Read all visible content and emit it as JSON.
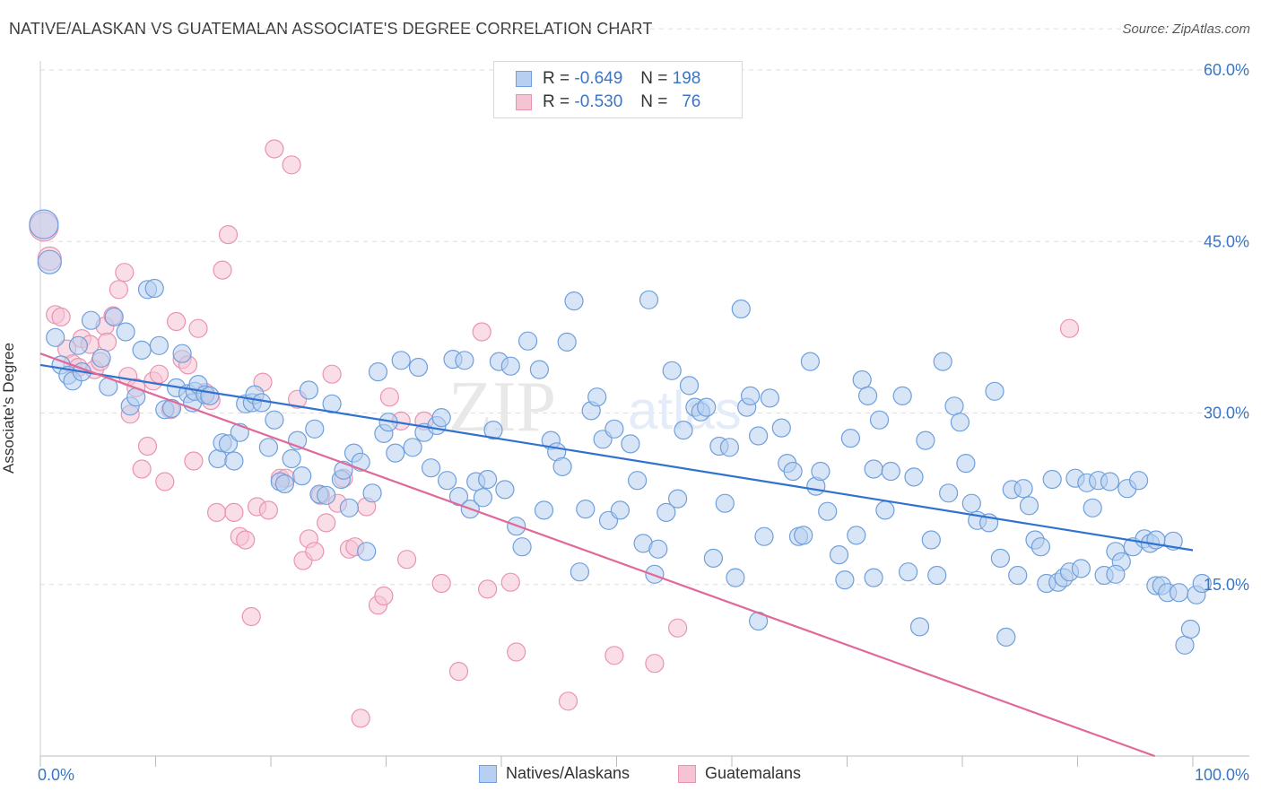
{
  "header": {
    "title": "NATIVE/ALASKAN VS GUATEMALAN ASSOCIATE'S DEGREE CORRELATION CHART",
    "source": "Source: ZipAtlas.com"
  },
  "legend_top": {
    "rows": [
      {
        "r_label": "R =",
        "r_value": "-0.649",
        "n_label": "N =",
        "n_value": "198",
        "color": "#6fa0e0"
      },
      {
        "r_label": "R =",
        "r_value": "-0.530",
        "n_label": "N =",
        "n_value": "76",
        "color": "#ec8fae"
      }
    ]
  },
  "legend_bottom": {
    "items": [
      {
        "label": "Natives/Alaskans",
        "color": "#6fa0e0"
      },
      {
        "label": "Guatemalans",
        "color": "#ec8fae"
      }
    ]
  },
  "colors": {
    "blue_fill": "#b7cff0",
    "blue_stroke": "#6f9fdc",
    "blue_line": "#2f72cf",
    "pink_fill": "#f6c3d3",
    "pink_stroke": "#ea93b0",
    "pink_line": "#e0699a",
    "grid": "#dddddd",
    "tick_text": "#3a76c4"
  },
  "chart_data": {
    "type": "scatter",
    "title": "NATIVE/ALASKAN VS GUATEMALAN ASSOCIATE'S DEGREE CORRELATION CHART",
    "ylabel": "Associate's Degree",
    "xlabel": "",
    "xlim": [
      0,
      100
    ],
    "ylim": [
      0,
      65
    ],
    "x_tick_labels": [
      "0.0%",
      "100.0%"
    ],
    "y_ticks": [
      15,
      30,
      45,
      60
    ],
    "y_tick_labels": [
      "15.0%",
      "30.0%",
      "45.0%",
      "60.0%"
    ],
    "grid": true,
    "watermark": "ZIPatlas",
    "series": [
      {
        "name": "Natives/Alaskans",
        "R": -0.649,
        "N": 198,
        "trend": {
          "x": [
            0,
            100
          ],
          "y": [
            34.2,
            18.0
          ]
        },
        "points": [
          [
            0.3,
            46.5
          ],
          [
            0.8,
            43.2
          ],
          [
            1.3,
            36.6
          ],
          [
            1.8,
            34.2
          ],
          [
            2.4,
            33.3
          ],
          [
            2.8,
            32.8
          ],
          [
            3.3,
            35.9
          ],
          [
            3.6,
            33.6
          ],
          [
            4.4,
            38.1
          ],
          [
            5.3,
            34.8
          ],
          [
            5.9,
            32.3
          ],
          [
            6.4,
            38.4
          ],
          [
            7.4,
            37.1
          ],
          [
            7.8,
            30.6
          ],
          [
            8.3,
            31.4
          ],
          [
            8.8,
            35.5
          ],
          [
            9.3,
            40.8
          ],
          [
            9.9,
            40.9
          ],
          [
            10.3,
            35.9
          ],
          [
            10.8,
            30.3
          ],
          [
            11.4,
            30.4
          ],
          [
            11.8,
            32.2
          ],
          [
            12.3,
            35.2
          ],
          [
            12.8,
            31.7
          ],
          [
            13.2,
            30.9
          ],
          [
            13.4,
            31.9
          ],
          [
            13.7,
            32.5
          ],
          [
            14.3,
            31.6
          ],
          [
            14.7,
            31.5
          ],
          [
            15.4,
            26.0
          ],
          [
            15.8,
            27.4
          ],
          [
            16.3,
            27.3
          ],
          [
            16.8,
            25.8
          ],
          [
            17.3,
            28.3
          ],
          [
            17.8,
            30.8
          ],
          [
            18.4,
            30.9
          ],
          [
            18.6,
            31.6
          ],
          [
            19.2,
            30.9
          ],
          [
            19.8,
            27.0
          ],
          [
            20.3,
            29.4
          ],
          [
            20.8,
            24.0
          ],
          [
            21.2,
            23.8
          ],
          [
            21.8,
            26.0
          ],
          [
            22.3,
            27.6
          ],
          [
            22.7,
            24.5
          ],
          [
            23.3,
            32.0
          ],
          [
            23.8,
            28.6
          ],
          [
            24.2,
            22.9
          ],
          [
            24.8,
            22.8
          ],
          [
            25.3,
            30.8
          ],
          [
            26.1,
            24.2
          ],
          [
            26.3,
            25.0
          ],
          [
            26.8,
            21.7
          ],
          [
            27.2,
            26.5
          ],
          [
            27.8,
            25.7
          ],
          [
            28.3,
            17.9
          ],
          [
            28.8,
            23.0
          ],
          [
            29.3,
            33.6
          ],
          [
            29.8,
            28.2
          ],
          [
            30.2,
            29.2
          ],
          [
            30.8,
            26.5
          ],
          [
            31.3,
            34.6
          ],
          [
            32.3,
            27.0
          ],
          [
            32.8,
            34.0
          ],
          [
            33.3,
            28.3
          ],
          [
            33.9,
            25.2
          ],
          [
            34.4,
            28.9
          ],
          [
            34.8,
            29.6
          ],
          [
            35.3,
            24.1
          ],
          [
            35.8,
            34.7
          ],
          [
            36.3,
            22.7
          ],
          [
            36.8,
            34.6
          ],
          [
            37.3,
            21.6
          ],
          [
            37.8,
            24.0
          ],
          [
            38.4,
            22.6
          ],
          [
            38.8,
            24.2
          ],
          [
            39.3,
            28.5
          ],
          [
            39.8,
            34.5
          ],
          [
            40.3,
            23.3
          ],
          [
            40.8,
            34.1
          ],
          [
            41.3,
            20.1
          ],
          [
            41.8,
            18.3
          ],
          [
            42.3,
            36.3
          ],
          [
            43.3,
            33.8
          ],
          [
            43.7,
            21.5
          ],
          [
            44.3,
            27.6
          ],
          [
            44.8,
            26.6
          ],
          [
            45.3,
            25.3
          ],
          [
            45.7,
            36.2
          ],
          [
            46.3,
            39.8
          ],
          [
            46.8,
            16.1
          ],
          [
            47.3,
            21.6
          ],
          [
            47.8,
            30.2
          ],
          [
            48.3,
            31.4
          ],
          [
            48.8,
            27.7
          ],
          [
            49.3,
            20.6
          ],
          [
            49.8,
            28.6
          ],
          [
            50.3,
            21.5
          ],
          [
            51.2,
            27.3
          ],
          [
            51.8,
            24.1
          ],
          [
            52.3,
            18.6
          ],
          [
            52.8,
            39.9
          ],
          [
            53.3,
            15.9
          ],
          [
            53.6,
            18.1
          ],
          [
            54.3,
            21.3
          ],
          [
            54.8,
            33.7
          ],
          [
            55.3,
            22.5
          ],
          [
            55.8,
            28.5
          ],
          [
            56.3,
            32.4
          ],
          [
            56.8,
            30.5
          ],
          [
            57.3,
            30.1
          ],
          [
            57.8,
            30.5
          ],
          [
            58.4,
            17.3
          ],
          [
            58.9,
            27.1
          ],
          [
            59.4,
            22.1
          ],
          [
            59.8,
            27.0
          ],
          [
            60.3,
            15.6
          ],
          [
            60.8,
            39.1
          ],
          [
            61.3,
            30.5
          ],
          [
            61.6,
            31.5
          ],
          [
            62.3,
            28.0
          ],
          [
            62.8,
            19.2
          ],
          [
            63.3,
            31.3
          ],
          [
            64.3,
            28.7
          ],
          [
            64.8,
            25.6
          ],
          [
            65.3,
            24.9
          ],
          [
            65.8,
            19.2
          ],
          [
            66.2,
            19.3
          ],
          [
            66.8,
            34.5
          ],
          [
            67.3,
            23.6
          ],
          [
            67.7,
            24.9
          ],
          [
            68.3,
            21.4
          ],
          [
            69.3,
            17.6
          ],
          [
            69.8,
            15.4
          ],
          [
            70.3,
            27.8
          ],
          [
            70.8,
            19.3
          ],
          [
            71.3,
            32.9
          ],
          [
            71.8,
            31.5
          ],
          [
            72.3,
            25.1
          ],
          [
            72.8,
            29.4
          ],
          [
            73.3,
            21.5
          ],
          [
            73.8,
            24.9
          ],
          [
            74.8,
            31.5
          ],
          [
            75.3,
            16.1
          ],
          [
            75.8,
            24.4
          ],
          [
            76.3,
            11.3
          ],
          [
            76.8,
            27.6
          ],
          [
            77.3,
            18.9
          ],
          [
            77.8,
            15.8
          ],
          [
            78.3,
            34.5
          ],
          [
            78.8,
            23.0
          ],
          [
            79.3,
            30.6
          ],
          [
            79.8,
            29.2
          ],
          [
            80.3,
            25.6
          ],
          [
            80.8,
            22.1
          ],
          [
            81.3,
            20.6
          ],
          [
            82.3,
            20.4
          ],
          [
            82.8,
            31.9
          ],
          [
            83.3,
            17.3
          ],
          [
            83.8,
            10.4
          ],
          [
            84.3,
            23.3
          ],
          [
            84.8,
            15.8
          ],
          [
            85.3,
            23.4
          ],
          [
            85.8,
            21.9
          ],
          [
            86.3,
            18.9
          ],
          [
            86.8,
            18.3
          ],
          [
            87.3,
            15.1
          ],
          [
            87.8,
            24.2
          ],
          [
            88.3,
            15.2
          ],
          [
            88.8,
            15.6
          ],
          [
            89.3,
            16.1
          ],
          [
            89.8,
            24.3
          ],
          [
            90.3,
            16.4
          ],
          [
            90.8,
            23.9
          ],
          [
            91.3,
            21.7
          ],
          [
            91.8,
            24.1
          ],
          [
            92.3,
            15.8
          ],
          [
            92.8,
            24.0
          ],
          [
            93.3,
            17.9
          ],
          [
            93.8,
            17.0
          ],
          [
            94.3,
            23.4
          ],
          [
            94.8,
            18.3
          ],
          [
            95.3,
            24.1
          ],
          [
            95.8,
            19.0
          ],
          [
            96.3,
            18.6
          ],
          [
            96.8,
            14.9
          ],
          [
            97.3,
            14.9
          ],
          [
            97.8,
            14.3
          ],
          [
            98.3,
            18.8
          ],
          [
            98.8,
            14.3
          ],
          [
            99.3,
            9.7
          ],
          [
            99.8,
            11.1
          ],
          [
            100.3,
            14.1
          ],
          [
            100.8,
            15.1
          ],
          [
            96.8,
            18.9
          ],
          [
            93.3,
            15.9
          ],
          [
            62.3,
            11.8
          ],
          [
            72.3,
            15.6
          ]
        ]
      },
      {
        "name": "Guatemalans",
        "R": -0.53,
        "N": 76,
        "trend": {
          "x": [
            0,
            96.7
          ],
          "y": [
            35.2,
            0.0
          ]
        },
        "points": [
          [
            0.3,
            46.3
          ],
          [
            0.8,
            43.5
          ],
          [
            1.3,
            38.6
          ],
          [
            1.8,
            38.4
          ],
          [
            2.3,
            35.6
          ],
          [
            2.8,
            34.3
          ],
          [
            3.3,
            34.0
          ],
          [
            3.6,
            36.5
          ],
          [
            4.3,
            36.0
          ],
          [
            4.7,
            33.8
          ],
          [
            5.2,
            34.5
          ],
          [
            5.6,
            37.6
          ],
          [
            5.8,
            36.2
          ],
          [
            6.3,
            38.5
          ],
          [
            6.8,
            40.8
          ],
          [
            7.3,
            42.3
          ],
          [
            7.6,
            33.2
          ],
          [
            7.8,
            29.9
          ],
          [
            8.3,
            32.2
          ],
          [
            8.8,
            25.1
          ],
          [
            9.3,
            27.1
          ],
          [
            9.8,
            32.8
          ],
          [
            10.3,
            33.4
          ],
          [
            10.8,
            24.0
          ],
          [
            11.3,
            30.3
          ],
          [
            11.8,
            38.0
          ],
          [
            12.3,
            34.7
          ],
          [
            12.8,
            34.2
          ],
          [
            13.3,
            25.8
          ],
          [
            13.7,
            37.4
          ],
          [
            14.3,
            31.8
          ],
          [
            14.8,
            31.1
          ],
          [
            15.3,
            21.3
          ],
          [
            15.8,
            42.5
          ],
          [
            16.3,
            45.6
          ],
          [
            16.8,
            21.3
          ],
          [
            17.3,
            19.2
          ],
          [
            17.8,
            18.9
          ],
          [
            18.3,
            12.2
          ],
          [
            18.8,
            21.8
          ],
          [
            19.3,
            32.7
          ],
          [
            19.8,
            21.5
          ],
          [
            20.3,
            53.1
          ],
          [
            20.8,
            24.3
          ],
          [
            21.3,
            24.3
          ],
          [
            21.8,
            51.7
          ],
          [
            22.3,
            31.2
          ],
          [
            22.8,
            17.1
          ],
          [
            23.3,
            19.0
          ],
          [
            23.8,
            17.9
          ],
          [
            24.3,
            22.8
          ],
          [
            24.8,
            20.4
          ],
          [
            25.3,
            33.4
          ],
          [
            25.8,
            22.1
          ],
          [
            26.3,
            24.3
          ],
          [
            26.8,
            18.1
          ],
          [
            27.3,
            18.3
          ],
          [
            27.8,
            3.3
          ],
          [
            28.3,
            21.8
          ],
          [
            29.3,
            13.2
          ],
          [
            29.8,
            14.0
          ],
          [
            30.3,
            31.4
          ],
          [
            31.3,
            29.3
          ],
          [
            31.8,
            17.2
          ],
          [
            33.3,
            29.3
          ],
          [
            34.8,
            15.1
          ],
          [
            36.3,
            7.4
          ],
          [
            38.3,
            37.1
          ],
          [
            38.8,
            14.6
          ],
          [
            40.8,
            15.2
          ],
          [
            41.3,
            9.1
          ],
          [
            45.8,
            4.8
          ],
          [
            49.8,
            8.8
          ],
          [
            53.3,
            8.1
          ],
          [
            55.3,
            11.2
          ],
          [
            89.3,
            37.4
          ]
        ]
      }
    ]
  }
}
